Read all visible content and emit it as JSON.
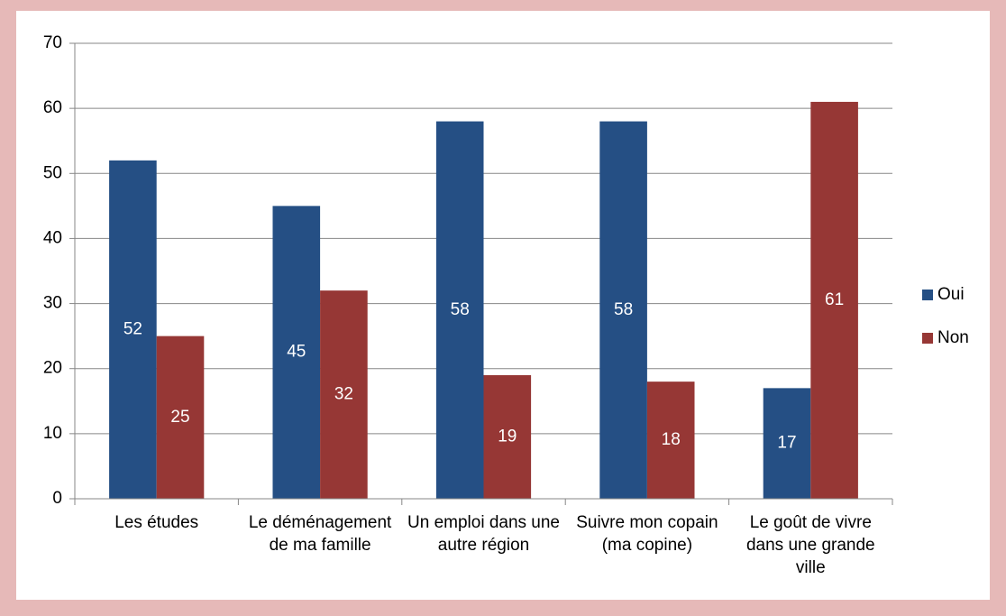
{
  "chart_data": {
    "type": "bar",
    "categories": [
      "Les études",
      "Le déménagement de ma famille",
      "Un emploi dans une autre région",
      "Suivre mon copain (ma copine)",
      "Le goût de vivre dans une grande ville"
    ],
    "series": [
      {
        "name": "Oui",
        "color": "#254f84",
        "values": [
          52,
          45,
          58,
          58,
          17
        ]
      },
      {
        "name": "Non",
        "color": "#963735",
        "values": [
          25,
          32,
          19,
          18,
          61
        ]
      }
    ],
    "ylim": [
      0,
      70
    ],
    "yticks": [
      0,
      10,
      20,
      30,
      40,
      50,
      60,
      70
    ],
    "grid": true,
    "legend": "right"
  }
}
